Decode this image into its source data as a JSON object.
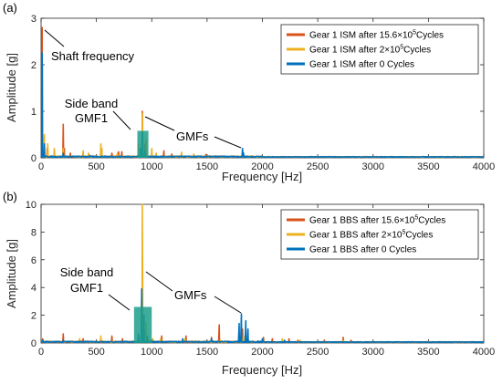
{
  "chart_data": [
    {
      "type": "line",
      "panel_label": "(a)",
      "xlabel": "Frequency [Hz]",
      "ylabel": "Amplitude [g]",
      "xlim": [
        0,
        4000
      ],
      "ylim": [
        0,
        3
      ],
      "xticks": [
        0,
        500,
        1000,
        1500,
        2000,
        2500,
        3000,
        3500,
        4000
      ],
      "yticks": [
        0,
        1,
        2,
        3
      ],
      "legend_position": "top-right",
      "series": [
        {
          "name_prefix": "Gear 1 ISM after 15.6×10",
          "name_sup": "5",
          "name_suffix": "Cycles",
          "color": "#D95319",
          "peaks": [
            [
              10,
              2.8
            ],
            [
              30,
              0.45
            ],
            [
              55,
              0.2
            ],
            [
              200,
              0.72
            ],
            [
              210,
              0.2
            ],
            [
              265,
              0.1
            ],
            [
              540,
              0.12
            ],
            [
              640,
              0.1
            ],
            [
              700,
              0.13
            ],
            [
              730,
              0.13
            ],
            [
              880,
              0.25
            ],
            [
              915,
              1.0
            ],
            [
              940,
              0.3
            ],
            [
              1110,
              0.15
            ],
            [
              1180,
              0.08
            ],
            [
              1490,
              0.07
            ],
            [
              1820,
              0.08
            ]
          ]
        },
        {
          "name_prefix": "Gear 1 ISM after 2×10",
          "name_sup": "5",
          "name_suffix": "Cycles",
          "color": "#EDB120",
          "peaks": [
            [
              12,
              2.0
            ],
            [
              30,
              0.5
            ],
            [
              60,
              0.3
            ],
            [
              120,
              0.2
            ],
            [
              200,
              0.2
            ],
            [
              380,
              0.15
            ],
            [
              430,
              0.1
            ],
            [
              540,
              0.3
            ],
            [
              550,
              0.2
            ],
            [
              690,
              0.1
            ],
            [
              880,
              0.3
            ],
            [
              915,
              0.95
            ],
            [
              950,
              0.4
            ],
            [
              1000,
              0.2
            ],
            [
              1040,
              0.1
            ],
            [
              1270,
              0.12
            ],
            [
              1380,
              0.08
            ],
            [
              1820,
              0.1
            ]
          ]
        },
        {
          "name_prefix": "Gear 1 ISM after 0 Cycles",
          "name_sup": "",
          "name_suffix": "",
          "color": "#0072BD",
          "peaks": [
            [
              10,
              2.25
            ],
            [
              30,
              0.3
            ],
            [
              200,
              0.1
            ],
            [
              440,
              0.05
            ],
            [
              900,
              0.2
            ],
            [
              915,
              0.55
            ],
            [
              940,
              0.15
            ],
            [
              1820,
              0.2
            ],
            [
              1830,
              0.1
            ]
          ]
        }
      ],
      "annotations": {
        "shaft": "Shaft frequency",
        "sideband_line1": "Side band",
        "sideband_line2": "GMF1",
        "gmfs": "GMFs"
      },
      "highlight_box": {
        "x": [
          870,
          970
        ],
        "y": [
          0,
          0.58
        ],
        "color": "#1F9E89"
      }
    },
    {
      "type": "line",
      "panel_label": "(b)",
      "xlabel": "Frequency [Hz]",
      "ylabel": "Amplitude [g]",
      "xlim": [
        0,
        4000
      ],
      "ylim": [
        0,
        10
      ],
      "xticks": [
        0,
        500,
        1000,
        1500,
        2000,
        2500,
        3000,
        3500,
        4000
      ],
      "yticks": [
        0,
        2,
        4,
        6,
        8,
        10
      ],
      "legend_position": "top-right",
      "series": [
        {
          "name_prefix": "Gear 1 BBS after 15.6×10",
          "name_sup": "5",
          "name_suffix": "Cycles",
          "color": "#D95319",
          "peaks": [
            [
              15,
              0.3
            ],
            [
              200,
              0.65
            ],
            [
              380,
              0.3
            ],
            [
              640,
              0.5
            ],
            [
              735,
              0.3
            ],
            [
              880,
              0.5
            ],
            [
              915,
              2.7
            ],
            [
              940,
              0.8
            ],
            [
              1090,
              0.5
            ],
            [
              1310,
              0.5
            ],
            [
              1540,
              0.4
            ],
            [
              1610,
              1.3
            ],
            [
              1790,
              0.6
            ],
            [
              1820,
              1.0
            ],
            [
              2010,
              0.4
            ],
            [
              2090,
              0.3
            ],
            [
              2240,
              0.3
            ],
            [
              2320,
              0.2
            ],
            [
              2560,
              0.2
            ],
            [
              2730,
              0.4
            ],
            [
              2800,
              0.2
            ]
          ]
        },
        {
          "name_prefix": "Gear 1 BBS after 2×10",
          "name_sup": "5",
          "name_suffix": "Cycles",
          "color": "#EDB120",
          "peaks": [
            [
              15,
              0.2
            ],
            [
              350,
              0.3
            ],
            [
              540,
              0.5
            ],
            [
              880,
              0.6
            ],
            [
              915,
              10.0
            ],
            [
              950,
              1.5
            ],
            [
              1010,
              0.3
            ],
            [
              1080,
              0.3
            ],
            [
              1300,
              0.3
            ],
            [
              1620,
              0.2
            ],
            [
              1830,
              0.5
            ],
            [
              2180,
              0.3
            ],
            [
              2340,
              0.2
            ],
            [
              2730,
              0.2
            ]
          ]
        },
        {
          "name_prefix": "Gear 1 BBS after 0 Cycles",
          "name_sup": "",
          "name_suffix": "",
          "color": "#0072BD",
          "peaks": [
            [
              15,
              0.2
            ],
            [
              200,
              0.2
            ],
            [
              880,
              0.6
            ],
            [
              910,
              3.9
            ],
            [
              930,
              2.0
            ],
            [
              960,
              0.5
            ],
            [
              1280,
              0.3
            ],
            [
              1540,
              0.3
            ],
            [
              1790,
              1.4
            ],
            [
              1810,
              2.1
            ],
            [
              1850,
              1.6
            ],
            [
              1870,
              1.0
            ],
            [
              2000,
              0.3
            ],
            [
              2200,
              0.2
            ]
          ]
        }
      ],
      "annotations": {
        "sideband_line1": "Side band",
        "sideband_line2": "GMF1",
        "gmfs": "GMFs"
      },
      "highlight_box": {
        "x": [
          840,
          1000
        ],
        "y": [
          0,
          2.6
        ],
        "color": "#1F9E89"
      }
    }
  ]
}
